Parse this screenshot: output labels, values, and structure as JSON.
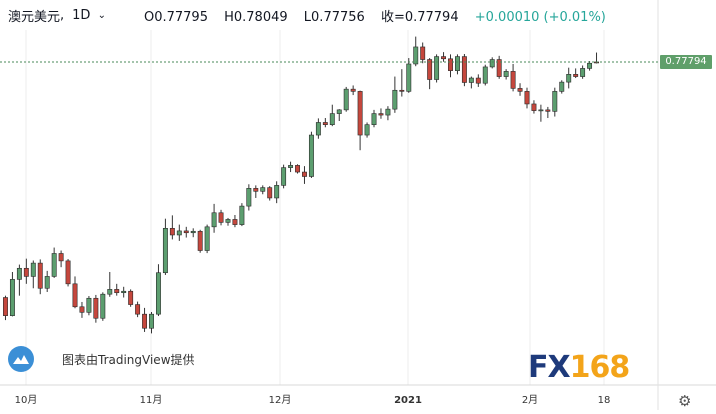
{
  "header": {
    "symbol": "澳元美元",
    "timeframe": "1D",
    "open": "O0.77795",
    "high": "H0.78049",
    "low": "L0.77756",
    "close": "收=0.77794",
    "change": "+0.00010 (+0.01%)"
  },
  "price_tag": "0.77794",
  "watermark_text": "图表由TradingView提供",
  "brand": {
    "fx": "FX",
    "num": "168"
  },
  "settings_icon": "gear-icon",
  "colors": {
    "up": "#5c9e6f",
    "down": "#c5473d",
    "grid": "#ececec",
    "last_price_line": "#4a8a5a",
    "price_tag_bg": "#5f9f6a"
  },
  "chart_data": {
    "type": "candlestick",
    "x_tick_labels": [
      "10月",
      "11月",
      "12月",
      "2021",
      "2月",
      "18"
    ],
    "current_price": 0.77794,
    "last_candle": {
      "open": 0.77795,
      "high": 0.78049,
      "low": 0.77756,
      "close": 0.77794
    },
    "ylim": [
      0.6985,
      0.7855
    ],
    "grid": true,
    "candles": [
      [
        0.7143,
        0.7148,
        0.7082,
        0.7094
      ],
      [
        0.7094,
        0.7212,
        0.7092,
        0.7192
      ],
      [
        0.7192,
        0.7232,
        0.7148,
        0.7222
      ],
      [
        0.7222,
        0.7248,
        0.718,
        0.72
      ],
      [
        0.72,
        0.7243,
        0.7168,
        0.7236
      ],
      [
        0.7236,
        0.7246,
        0.7152,
        0.7168
      ],
      [
        0.7168,
        0.7215,
        0.7158,
        0.72
      ],
      [
        0.72,
        0.7278,
        0.7196,
        0.7262
      ],
      [
        0.7262,
        0.727,
        0.7225,
        0.7242
      ],
      [
        0.7242,
        0.7247,
        0.7173,
        0.718
      ],
      [
        0.718,
        0.72,
        0.7114,
        0.7118
      ],
      [
        0.7118,
        0.7131,
        0.7088,
        0.7103
      ],
      [
        0.7103,
        0.7147,
        0.7095,
        0.7141
      ],
      [
        0.7141,
        0.715,
        0.7075,
        0.7087
      ],
      [
        0.7087,
        0.7157,
        0.708,
        0.7152
      ],
      [
        0.7152,
        0.7212,
        0.7145,
        0.7165
      ],
      [
        0.7165,
        0.718,
        0.7148,
        0.7156
      ],
      [
        0.7156,
        0.7172,
        0.7143,
        0.716
      ],
      [
        0.716,
        0.7165,
        0.7118,
        0.7124
      ],
      [
        0.7124,
        0.7132,
        0.709,
        0.7098
      ],
      [
        0.7098,
        0.7115,
        0.705,
        0.706
      ],
      [
        0.706,
        0.7104,
        0.7046,
        0.7098
      ],
      [
        0.7098,
        0.7233,
        0.7093,
        0.721
      ],
      [
        0.721,
        0.7356,
        0.7204,
        0.733
      ],
      [
        0.733,
        0.7365,
        0.73,
        0.7312
      ],
      [
        0.7312,
        0.734,
        0.7296,
        0.7323
      ],
      [
        0.7323,
        0.7334,
        0.7305,
        0.7318
      ],
      [
        0.7318,
        0.733,
        0.7306,
        0.7322
      ],
      [
        0.7322,
        0.7326,
        0.7264,
        0.727
      ],
      [
        0.727,
        0.734,
        0.7263,
        0.7334
      ],
      [
        0.7334,
        0.7396,
        0.7318,
        0.7372
      ],
      [
        0.7372,
        0.738,
        0.7338,
        0.7346
      ],
      [
        0.7346,
        0.7358,
        0.7337,
        0.7354
      ],
      [
        0.7354,
        0.7366,
        0.7333,
        0.734
      ],
      [
        0.734,
        0.7398,
        0.7336,
        0.739
      ],
      [
        0.739,
        0.7449,
        0.7378,
        0.7438
      ],
      [
        0.7438,
        0.7446,
        0.7412,
        0.743
      ],
      [
        0.743,
        0.7446,
        0.7422,
        0.744
      ],
      [
        0.744,
        0.7444,
        0.7405,
        0.7412
      ],
      [
        0.7412,
        0.7457,
        0.7398,
        0.7446
      ],
      [
        0.7446,
        0.7502,
        0.7438,
        0.7494
      ],
      [
        0.7494,
        0.751,
        0.7482,
        0.75
      ],
      [
        0.75,
        0.7503,
        0.7478,
        0.7482
      ],
      [
        0.7482,
        0.7498,
        0.745,
        0.747
      ],
      [
        0.747,
        0.7591,
        0.7466,
        0.7582
      ],
      [
        0.7582,
        0.7627,
        0.7572,
        0.7616
      ],
      [
        0.7616,
        0.7628,
        0.7603,
        0.761
      ],
      [
        0.761,
        0.7664,
        0.7606,
        0.764
      ],
      [
        0.764,
        0.7652,
        0.762,
        0.765
      ],
      [
        0.765,
        0.7712,
        0.7645,
        0.7706
      ],
      [
        0.7706,
        0.7716,
        0.769,
        0.77
      ],
      [
        0.77,
        0.7702,
        0.7541,
        0.7582
      ],
      [
        0.7582,
        0.7616,
        0.7575,
        0.761
      ],
      [
        0.761,
        0.765,
        0.7603,
        0.764
      ],
      [
        0.764,
        0.7654,
        0.7626,
        0.7636
      ],
      [
        0.7636,
        0.766,
        0.7622,
        0.7652
      ],
      [
        0.7652,
        0.774,
        0.7642,
        0.7703
      ],
      [
        0.7703,
        0.776,
        0.7686,
        0.77
      ],
      [
        0.77,
        0.779,
        0.7696,
        0.7774
      ],
      [
        0.7774,
        0.7848,
        0.7768,
        0.782
      ],
      [
        0.782,
        0.7832,
        0.7776,
        0.7786
      ],
      [
        0.7786,
        0.779,
        0.7706,
        0.7732
      ],
      [
        0.7732,
        0.78,
        0.7724,
        0.7794
      ],
      [
        0.7794,
        0.7806,
        0.778,
        0.7788
      ],
      [
        0.7788,
        0.78,
        0.7738,
        0.7756
      ],
      [
        0.7756,
        0.78,
        0.7746,
        0.7794
      ],
      [
        0.7794,
        0.7801,
        0.7714,
        0.7724
      ],
      [
        0.7724,
        0.774,
        0.7708,
        0.7736
      ],
      [
        0.7736,
        0.7746,
        0.7712,
        0.7722
      ],
      [
        0.7722,
        0.7772,
        0.7716,
        0.7766
      ],
      [
        0.7766,
        0.7792,
        0.7762,
        0.7786
      ],
      [
        0.7786,
        0.7796,
        0.7734,
        0.774
      ],
      [
        0.774,
        0.776,
        0.7732,
        0.7754
      ],
      [
        0.7754,
        0.7774,
        0.77,
        0.7708
      ],
      [
        0.7708,
        0.7722,
        0.7688,
        0.77
      ],
      [
        0.77,
        0.771,
        0.7654,
        0.7666
      ],
      [
        0.7666,
        0.7676,
        0.764,
        0.7648
      ],
      [
        0.7648,
        0.7664,
        0.7618,
        0.765
      ],
      [
        0.765,
        0.7658,
        0.7628,
        0.7646
      ],
      [
        0.7646,
        0.771,
        0.7632,
        0.77
      ],
      [
        0.77,
        0.773,
        0.7694,
        0.7725
      ],
      [
        0.7725,
        0.7764,
        0.7708,
        0.7746
      ],
      [
        0.7746,
        0.7762,
        0.7736,
        0.774
      ],
      [
        0.774,
        0.777,
        0.7734,
        0.7762
      ],
      [
        0.7762,
        0.7782,
        0.7756,
        0.7776
      ],
      [
        0.77795,
        0.78049,
        0.77756,
        0.77794
      ]
    ]
  }
}
